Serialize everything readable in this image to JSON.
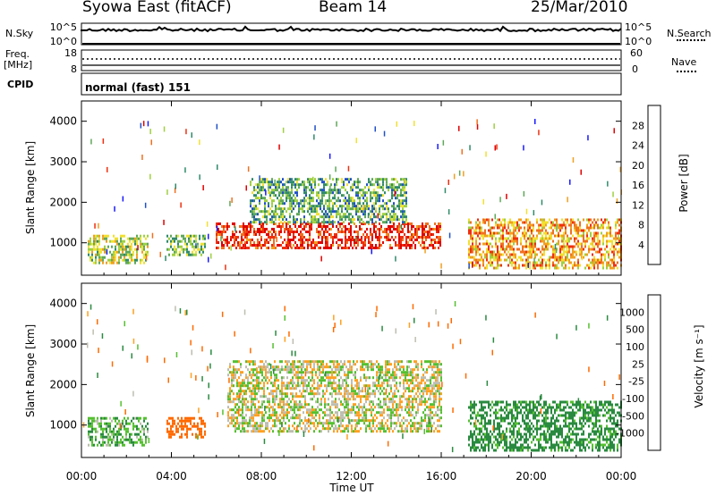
{
  "header": {
    "station": "Syowa East (fitACF)",
    "beam": "Beam 14",
    "date": "25/Mar/2010"
  },
  "left_labels": {
    "nsky": "N.Sky",
    "freq": "Freq.",
    "mhz": "[MHz]",
    "cpid": "CPID"
  },
  "right_labels": {
    "nsearch": "N.Search",
    "nave": "Nave"
  },
  "cpid_text": "normal (fast) 151",
  "noise_ticks": {
    "top": "10^5",
    "bottom": "10^0"
  },
  "freq_ticks": {
    "left_top": "18",
    "left_bottom": "8",
    "right_top": "60",
    "right_bottom": "0"
  },
  "time_ticks": [
    "00:00",
    "04:00",
    "08:00",
    "12:00",
    "16:00",
    "20:00",
    "00:00"
  ],
  "xlabel": "Time UT",
  "ylabel": "Slant Range [km]",
  "range_ticks": [
    "1000",
    "2000",
    "3000",
    "4000"
  ],
  "power_bar": {
    "label": "Power [dB]",
    "ticks": [
      "4",
      "8",
      "12",
      "16",
      "20",
      "24",
      "28"
    ],
    "colors": [
      "#1a1aff",
      "#2050c8",
      "#2f8a6a",
      "#5fa85a",
      "#9fd040",
      "#f2e030",
      "#f0a020",
      "#f07020",
      "#ee3010",
      "#e00000"
    ]
  },
  "velocity_bar": {
    "label": "Velocity [m s^-1]",
    "ticks": [
      "-1000",
      "-500",
      "-100",
      "-25",
      "25",
      "100",
      "500",
      "1000"
    ],
    "colors": [
      "#ff0000",
      "#ff6a00",
      "#ffa020",
      "#bdbdb0",
      "#55c030",
      "#2a8a40",
      "#1a4ab0",
      "#1020d0"
    ]
  },
  "chart_data": [
    {
      "type": "heatmap",
      "title": "Power",
      "xlabel": "Time UT",
      "ylabel": "Slant Range [km]",
      "xlim": [
        "00:00",
        "24:00"
      ],
      "ylim": [
        200,
        4500
      ],
      "colorbar": {
        "label": "Power [dB]",
        "range": [
          0,
          30
        ]
      },
      "regions": [
        {
          "t": [
            0.3,
            3.0
          ],
          "r": [
            500,
            1200
          ],
          "value_db": 14
        },
        {
          "t": [
            3.8,
            5.5
          ],
          "r": [
            700,
            1200
          ],
          "value_db": 12
        },
        {
          "t": [
            6.0,
            16.0
          ],
          "r": [
            850,
            1500
          ],
          "value_db": 26
        },
        {
          "t": [
            7.5,
            14.5
          ],
          "r": [
            1500,
            2600
          ],
          "value_db": 10
        },
        {
          "t": [
            17.2,
            24.0
          ],
          "r": [
            400,
            1600
          ],
          "value_db": 20
        }
      ]
    },
    {
      "type": "heatmap",
      "title": "Velocity",
      "xlabel": "Time UT",
      "ylabel": "Slant Range [km]",
      "xlim": [
        "00:00",
        "24:00"
      ],
      "ylim": [
        200,
        4500
      ],
      "colorbar": {
        "label": "Velocity [m s^-1]",
        "range": [
          -1000,
          1000
        ]
      },
      "regions": [
        {
          "t": [
            0.3,
            3.0
          ],
          "r": [
            500,
            1200
          ],
          "value_ms": 80
        },
        {
          "t": [
            3.8,
            5.5
          ],
          "r": [
            700,
            1200
          ],
          "value_ms": -300
        },
        {
          "t": [
            6.5,
            16.0
          ],
          "r": [
            850,
            2600
          ],
          "value_ms": 0
        },
        {
          "t": [
            17.2,
            24.0
          ],
          "r": [
            400,
            1600
          ],
          "value_ms": 150
        }
      ]
    }
  ]
}
